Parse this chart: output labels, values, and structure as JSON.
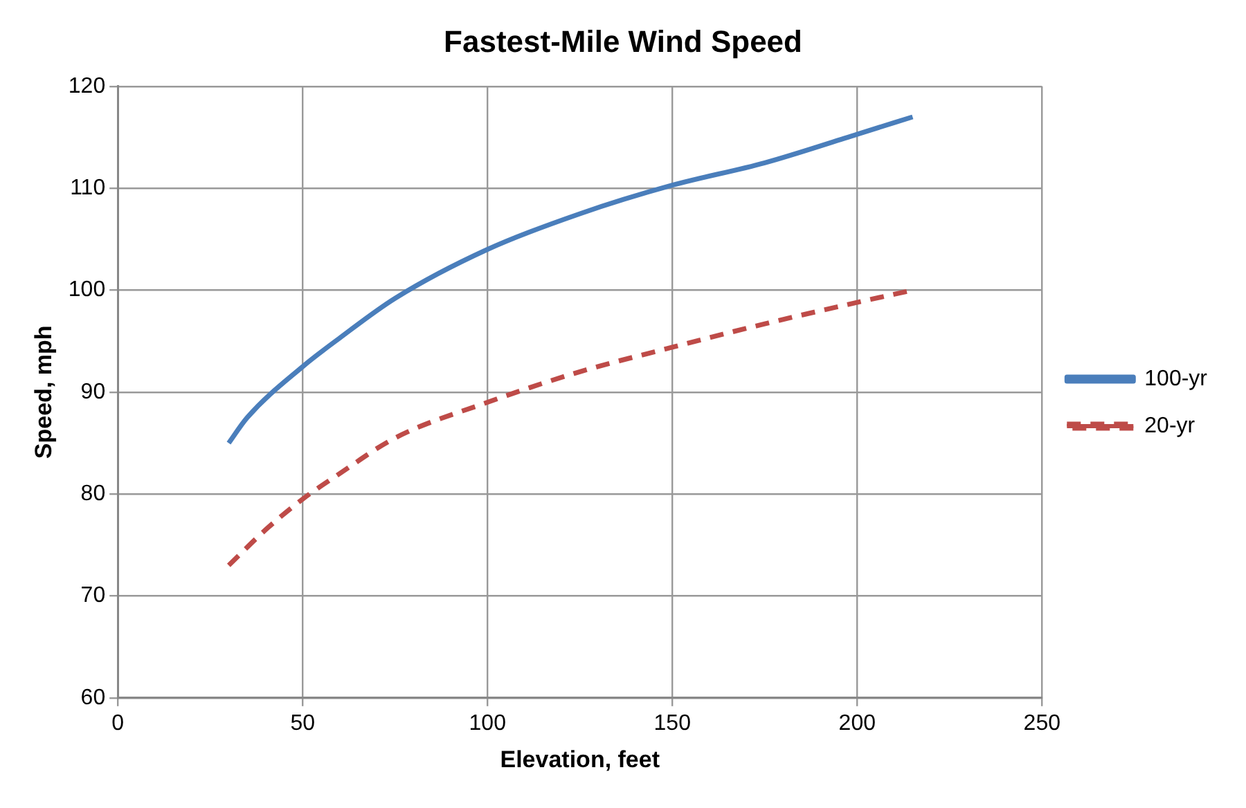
{
  "chart_data": {
    "type": "line",
    "title": "Fastest-Mile Wind Speed",
    "xlabel": "Elevation, feet",
    "ylabel": "Speed, mph",
    "xlim": [
      0,
      250
    ],
    "xticks": [
      0,
      50,
      100,
      150,
      200,
      250
    ],
    "ylim": [
      60,
      120
    ],
    "yticks": [
      60,
      70,
      80,
      90,
      100,
      110,
      120
    ],
    "grid": true,
    "legend": "right",
    "marker": "none",
    "series": [
      {
        "name": "100-yr",
        "color": "#4a7ebb",
        "line_style": "solid",
        "x": [
          30,
          35,
          50,
          60,
          75,
          100,
          125,
          150,
          175,
          200,
          215
        ],
        "values": [
          85,
          87.5,
          92.5,
          95.3,
          99.2,
          104,
          107.5,
          110.3,
          112.5,
          115.3,
          117
        ]
      },
      {
        "name": "20-yr",
        "color": "#be4b48",
        "line_style": "dashed",
        "x": [
          30,
          40,
          50,
          60,
          75,
          100,
          125,
          150,
          175,
          200,
          215
        ],
        "values": [
          73,
          76.5,
          79.5,
          82,
          85.5,
          89,
          92,
          94.4,
          96.7,
          98.8,
          100
        ]
      }
    ]
  }
}
